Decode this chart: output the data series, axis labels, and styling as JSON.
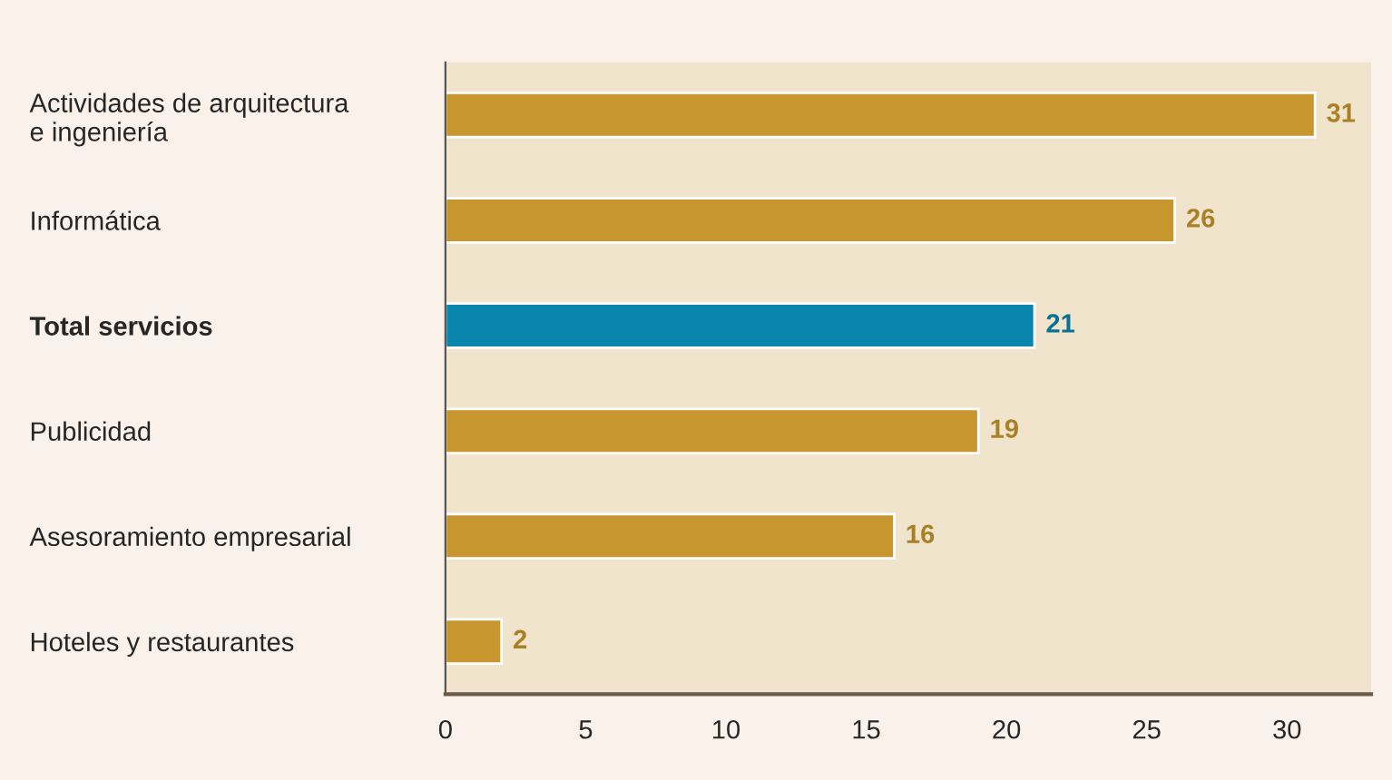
{
  "chart_data": {
    "type": "bar",
    "orientation": "horizontal",
    "categories": [
      "Actividades de arquitectura\ne ingeniería",
      "Informática",
      "Total servicios",
      "Publicidad",
      "Asesoramiento empresarial",
      "Hoteles y restaurantes"
    ],
    "values": [
      31,
      26,
      21,
      19,
      16,
      2
    ],
    "colors": [
      "#c8962e",
      "#c8962e",
      "#0a86ad",
      "#c8962e",
      "#c8962e",
      "#c8962e"
    ],
    "xlim": [
      0,
      33
    ],
    "xticks": [
      0,
      5,
      10,
      15,
      20,
      25,
      30
    ],
    "data_labels": true,
    "grid": false,
    "legend": false
  }
}
